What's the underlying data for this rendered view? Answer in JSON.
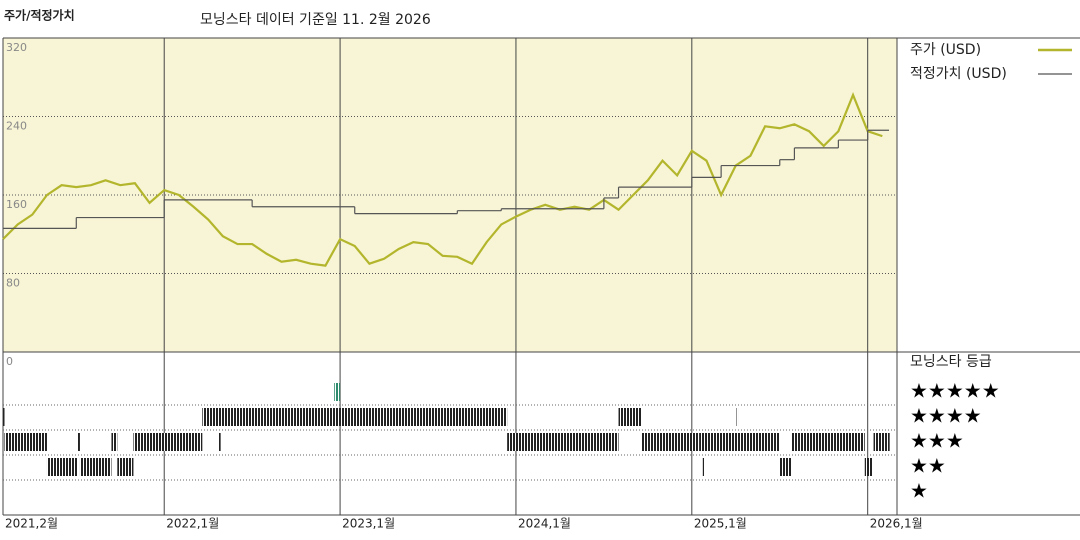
{
  "chart_data": {
    "type": "line",
    "title": "주가/적정가치",
    "subtitle": "모닝스타 데이터 기준일 11. 2월 2026",
    "xlim": [
      0,
      61
    ],
    "xticks": [
      {
        "value": 0,
        "label": "2021,2월"
      },
      {
        "value": 11,
        "label": "2022,1월"
      },
      {
        "value": 23,
        "label": "2023,1월"
      },
      {
        "value": 35,
        "label": "2024,1월"
      },
      {
        "value": 47,
        "label": "2025,1월"
      },
      {
        "value": 59,
        "label": "2026,1월"
      }
    ],
    "ylim": [
      0,
      320
    ],
    "yticks": [
      0,
      80,
      160,
      240,
      320
    ],
    "grid": true,
    "series": [
      {
        "name": "주가 (USD)",
        "color": "#b3b62c",
        "style": "line",
        "x": [
          0,
          1,
          2,
          3,
          4,
          5,
          6,
          7,
          8,
          9,
          10,
          11,
          12,
          13,
          14,
          15,
          16,
          17,
          18,
          19,
          20,
          21,
          22,
          23,
          24,
          25,
          26,
          27,
          28,
          29,
          30,
          31,
          32,
          33,
          34,
          35,
          36,
          37,
          38,
          39,
          40,
          41,
          42,
          43,
          44,
          45,
          46,
          47,
          48,
          49,
          50,
          51,
          52,
          53,
          54,
          55,
          56,
          57,
          58,
          59,
          60
        ],
        "values": [
          115,
          130,
          140,
          160,
          170,
          168,
          170,
          175,
          170,
          172,
          152,
          165,
          160,
          148,
          135,
          118,
          110,
          110,
          100,
          92,
          94,
          90,
          88,
          115,
          108,
          90,
          95,
          105,
          112,
          110,
          98,
          97,
          90,
          112,
          130,
          138,
          145,
          150,
          145,
          148,
          145,
          155,
          145,
          160,
          175,
          195,
          180,
          205,
          195,
          160,
          190,
          200,
          230,
          228,
          232,
          225,
          210,
          225,
          262,
          225,
          220
        ]
      },
      {
        "name": "적정가치 (USD)",
        "color": "#555555",
        "style": "step",
        "x": [
          0,
          5,
          11,
          17,
          24,
          31,
          34,
          41,
          42,
          47,
          49,
          53,
          54,
          57,
          59
        ],
        "values": [
          126,
          137,
          155,
          148,
          141,
          144,
          146,
          157,
          168,
          178,
          190,
          196,
          208,
          216,
          226
        ]
      }
    ],
    "rating": {
      "title": "모닝스타 등급",
      "labels": [
        "★★★★★",
        "★★★★",
        "★★★",
        "★★",
        "★"
      ],
      "start": [
        0,
        0.1,
        3,
        5.05,
        5.25,
        7.4,
        7.8,
        8.9,
        13.6,
        14.7,
        22.6,
        23,
        34.4,
        42,
        43.6,
        47.5,
        50.05,
        53,
        53.8,
        58.8,
        59.4,
        47.75
      ],
      "end": [
        0.1,
        3,
        5.05,
        5.25,
        7.4,
        7.8,
        8.9,
        13.6,
        23,
        14.85,
        23,
        34.4,
        42,
        43.6,
        47.5,
        53,
        50.15,
        53.8,
        58.8,
        59.3,
        60.5,
        47.85
      ],
      "stars": [
        4,
        3,
        2,
        3,
        2,
        3,
        2,
        3,
        4,
        3,
        5,
        4,
        3,
        4,
        3,
        3,
        4,
        2,
        3,
        2,
        3,
        2
      ]
    }
  }
}
